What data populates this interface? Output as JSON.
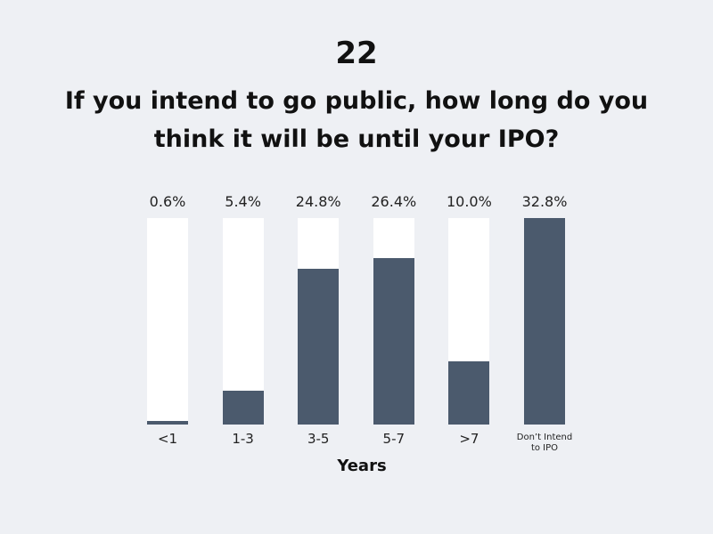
{
  "chart_data": {
    "type": "bar",
    "chart_number": "22",
    "title": "If you intend to go public, how long do you think it will be until your IPO?",
    "x_label": "Years",
    "categories": [
      "<1",
      "1-3",
      "3-5",
      "5-7",
      ">7",
      "Don’t Intend to IPO"
    ],
    "values": [
      0.6,
      5.4,
      24.8,
      26.4,
      10.0,
      32.8
    ],
    "value_labels": [
      "0.6%",
      "5.4%",
      "24.8%",
      "26.4%",
      "10.0%",
      "32.8%"
    ],
    "color": "#4b5a6d",
    "track_color": "#ffffff",
    "ylim": [
      0,
      32.8
    ]
  }
}
